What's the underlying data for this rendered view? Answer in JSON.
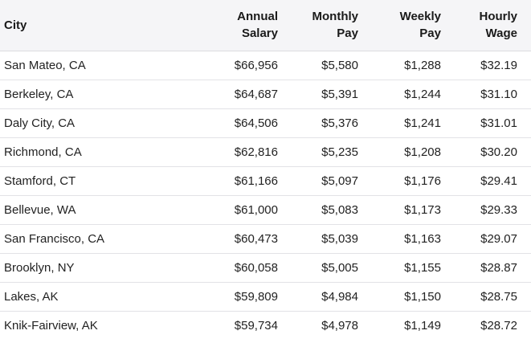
{
  "table": {
    "headers": {
      "city": "City",
      "annual_line1": "Annual",
      "annual_line2": "Salary",
      "monthly_line1": "Monthly",
      "monthly_line2": "Pay",
      "weekly_line1": "Weekly",
      "weekly_line2": "Pay",
      "hourly_line1": "Hourly",
      "hourly_line2": "Wage"
    },
    "rows": [
      {
        "city": "San Mateo, CA",
        "annual": "$66,956",
        "monthly": "$5,580",
        "weekly": "$1,288",
        "hourly": "$32.19"
      },
      {
        "city": "Berkeley, CA",
        "annual": "$64,687",
        "monthly": "$5,391",
        "weekly": "$1,244",
        "hourly": "$31.10"
      },
      {
        "city": "Daly City, CA",
        "annual": "$64,506",
        "monthly": "$5,376",
        "weekly": "$1,241",
        "hourly": "$31.01"
      },
      {
        "city": "Richmond, CA",
        "annual": "$62,816",
        "monthly": "$5,235",
        "weekly": "$1,208",
        "hourly": "$30.20"
      },
      {
        "city": "Stamford, CT",
        "annual": "$61,166",
        "monthly": "$5,097",
        "weekly": "$1,176",
        "hourly": "$29.41"
      },
      {
        "city": "Bellevue, WA",
        "annual": "$61,000",
        "monthly": "$5,083",
        "weekly": "$1,173",
        "hourly": "$29.33"
      },
      {
        "city": "San Francisco, CA",
        "annual": "$60,473",
        "monthly": "$5,039",
        "weekly": "$1,163",
        "hourly": "$29.07"
      },
      {
        "city": "Brooklyn, NY",
        "annual": "$60,058",
        "monthly": "$5,005",
        "weekly": "$1,155",
        "hourly": "$28.87"
      },
      {
        "city": "Lakes, AK",
        "annual": "$59,809",
        "monthly": "$4,984",
        "weekly": "$1,150",
        "hourly": "$28.75"
      },
      {
        "city": "Knik-Fairview, AK",
        "annual": "$59,734",
        "monthly": "$4,978",
        "weekly": "$1,149",
        "hourly": "$28.72"
      }
    ]
  },
  "colors": {
    "header_background": "#f5f5f7",
    "row_divider": "#e2e2e6",
    "text": "#222222"
  }
}
